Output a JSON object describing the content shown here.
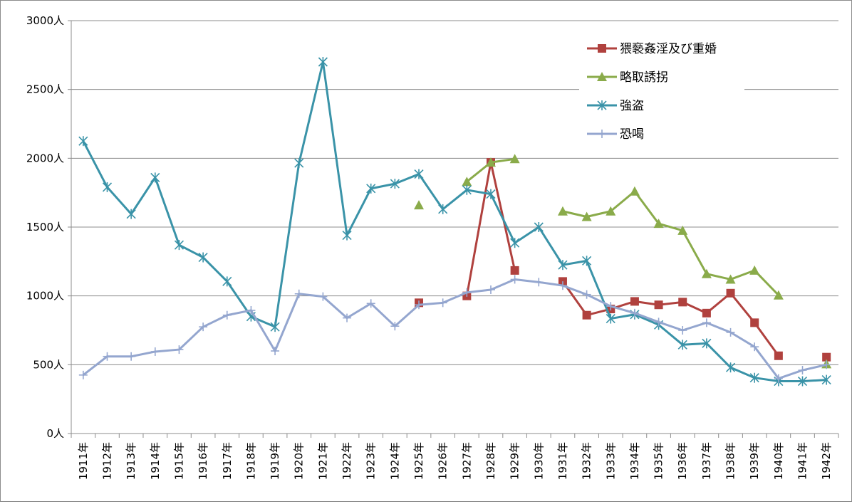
{
  "chart_data": {
    "type": "line",
    "title": "",
    "xlabel": "",
    "ylabel": "",
    "ylim": [
      0,
      3000
    ],
    "yticks": [
      0,
      500,
      1000,
      1500,
      2000,
      2500,
      3000
    ],
    "ytick_labels": [
      "0人",
      "500人",
      "1000人",
      "1500人",
      "2000人",
      "2500人",
      "3000人"
    ],
    "grid": true,
    "legend_position": "top-right",
    "categories": [
      "1911年",
      "1912年",
      "1913年",
      "1914年",
      "1915年",
      "1916年",
      "1917年",
      "1918年",
      "1919年",
      "1920年",
      "1921年",
      "1922年",
      "1923年",
      "1924年",
      "1925年",
      "1926年",
      "1927年",
      "1928年",
      "1929年",
      "1930年",
      "1931年",
      "1932年",
      "1933年",
      "1934年",
      "1935年",
      "1936年",
      "1937年",
      "1938年",
      "1939年",
      "1940年",
      "1941年",
      "1942年"
    ],
    "series": [
      {
        "name": "猥褻姦淫及び重婚",
        "color": "#b0413e",
        "marker": "square",
        "values": [
          null,
          null,
          null,
          null,
          null,
          null,
          null,
          null,
          null,
          null,
          null,
          null,
          null,
          null,
          950,
          null,
          1000,
          1970,
          1185,
          null,
          1105,
          860,
          905,
          960,
          935,
          955,
          875,
          1020,
          805,
          565,
          null,
          555
        ]
      },
      {
        "name": "略取誘拐",
        "color": "#8aab4a",
        "marker": "triangle",
        "values": [
          null,
          null,
          null,
          null,
          null,
          null,
          null,
          null,
          null,
          null,
          null,
          null,
          null,
          null,
          1660,
          null,
          1830,
          1970,
          1995,
          null,
          1615,
          1575,
          1615,
          1760,
          1525,
          1475,
          1160,
          1120,
          1185,
          1005,
          null,
          505
        ]
      },
      {
        "name": "強盗",
        "color": "#3a93a8",
        "marker": "star",
        "values": [
          2125,
          1790,
          1595,
          1860,
          1370,
          1280,
          1105,
          850,
          775,
          1965,
          2700,
          1440,
          1780,
          1815,
          1885,
          1630,
          1770,
          1740,
          1385,
          1500,
          1225,
          1255,
          835,
          865,
          790,
          645,
          655,
          480,
          405,
          380,
          380,
          390
        ]
      },
      {
        "name": "恐喝",
        "color": "#94a6cf",
        "marker": "plus",
        "values": [
          425,
          560,
          560,
          595,
          610,
          775,
          860,
          895,
          600,
          1015,
          995,
          840,
          945,
          780,
          935,
          950,
          1025,
          1045,
          1120,
          1100,
          1075,
          1010,
          925,
          875,
          810,
          750,
          805,
          735,
          630,
          400,
          460,
          500
        ]
      }
    ]
  }
}
